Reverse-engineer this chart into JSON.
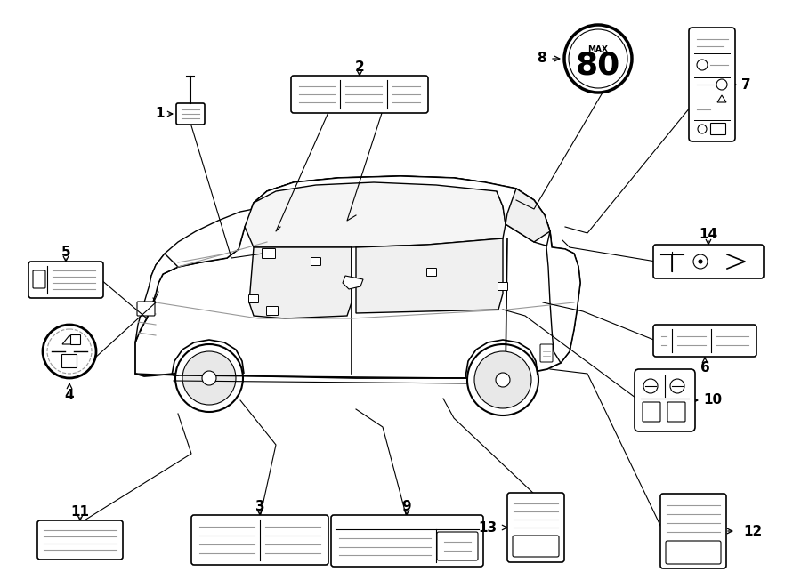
{
  "bg_color": "#ffffff",
  "line_color": "#000000",
  "gray_color": "#999999",
  "dark_gray": "#555555",
  "items": [
    1,
    2,
    3,
    4,
    5,
    6,
    7,
    8,
    9,
    10,
    11,
    12,
    13,
    14
  ]
}
